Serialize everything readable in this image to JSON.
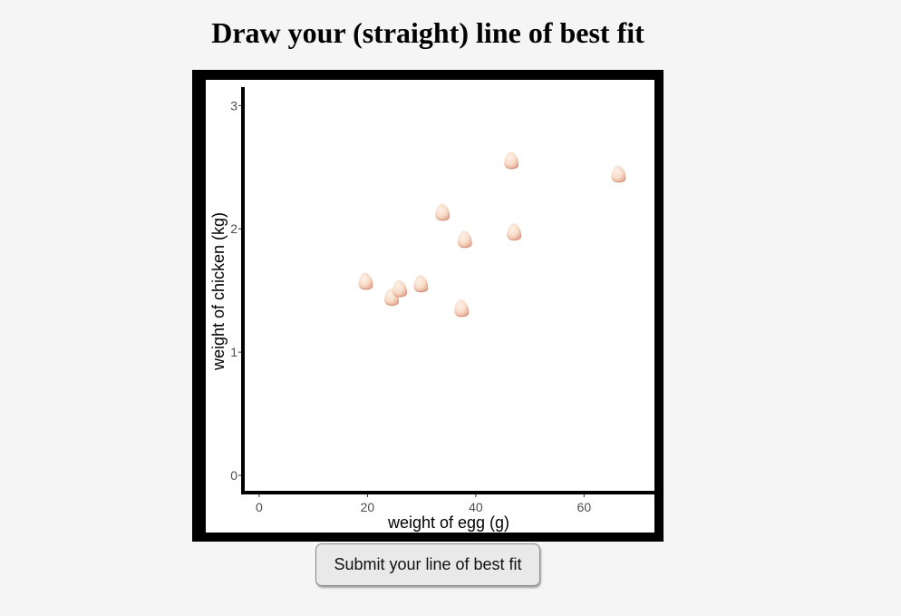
{
  "title": "Draw your (straight) line of best fit",
  "submit_label": "Submit your line of best fit",
  "colors": {
    "egg_fill": "#f8dcc9",
    "egg_shadow": "#d9927a",
    "frame": "#000000",
    "axis": "#000000"
  },
  "chart_data": {
    "type": "scatter",
    "title": "",
    "xlabel": "weight of egg (g)",
    "ylabel": "weight of chicken (kg)",
    "xlim": [
      -3,
      73
    ],
    "ylim": [
      -0.14,
      3.15
    ],
    "xticks": [
      0,
      20,
      40,
      60
    ],
    "yticks": [
      0,
      1,
      2,
      3
    ],
    "marker": "egg-icon",
    "grid": false,
    "series": [
      {
        "x": [
          19.6,
          24.4,
          25.9,
          29.8,
          33.8,
          37.3,
          37.9,
          46.5,
          47.0,
          66.3
        ],
        "y": [
          1.57,
          1.44,
          1.51,
          1.55,
          2.13,
          1.35,
          1.91,
          2.55,
          1.97,
          2.44
        ]
      }
    ]
  }
}
